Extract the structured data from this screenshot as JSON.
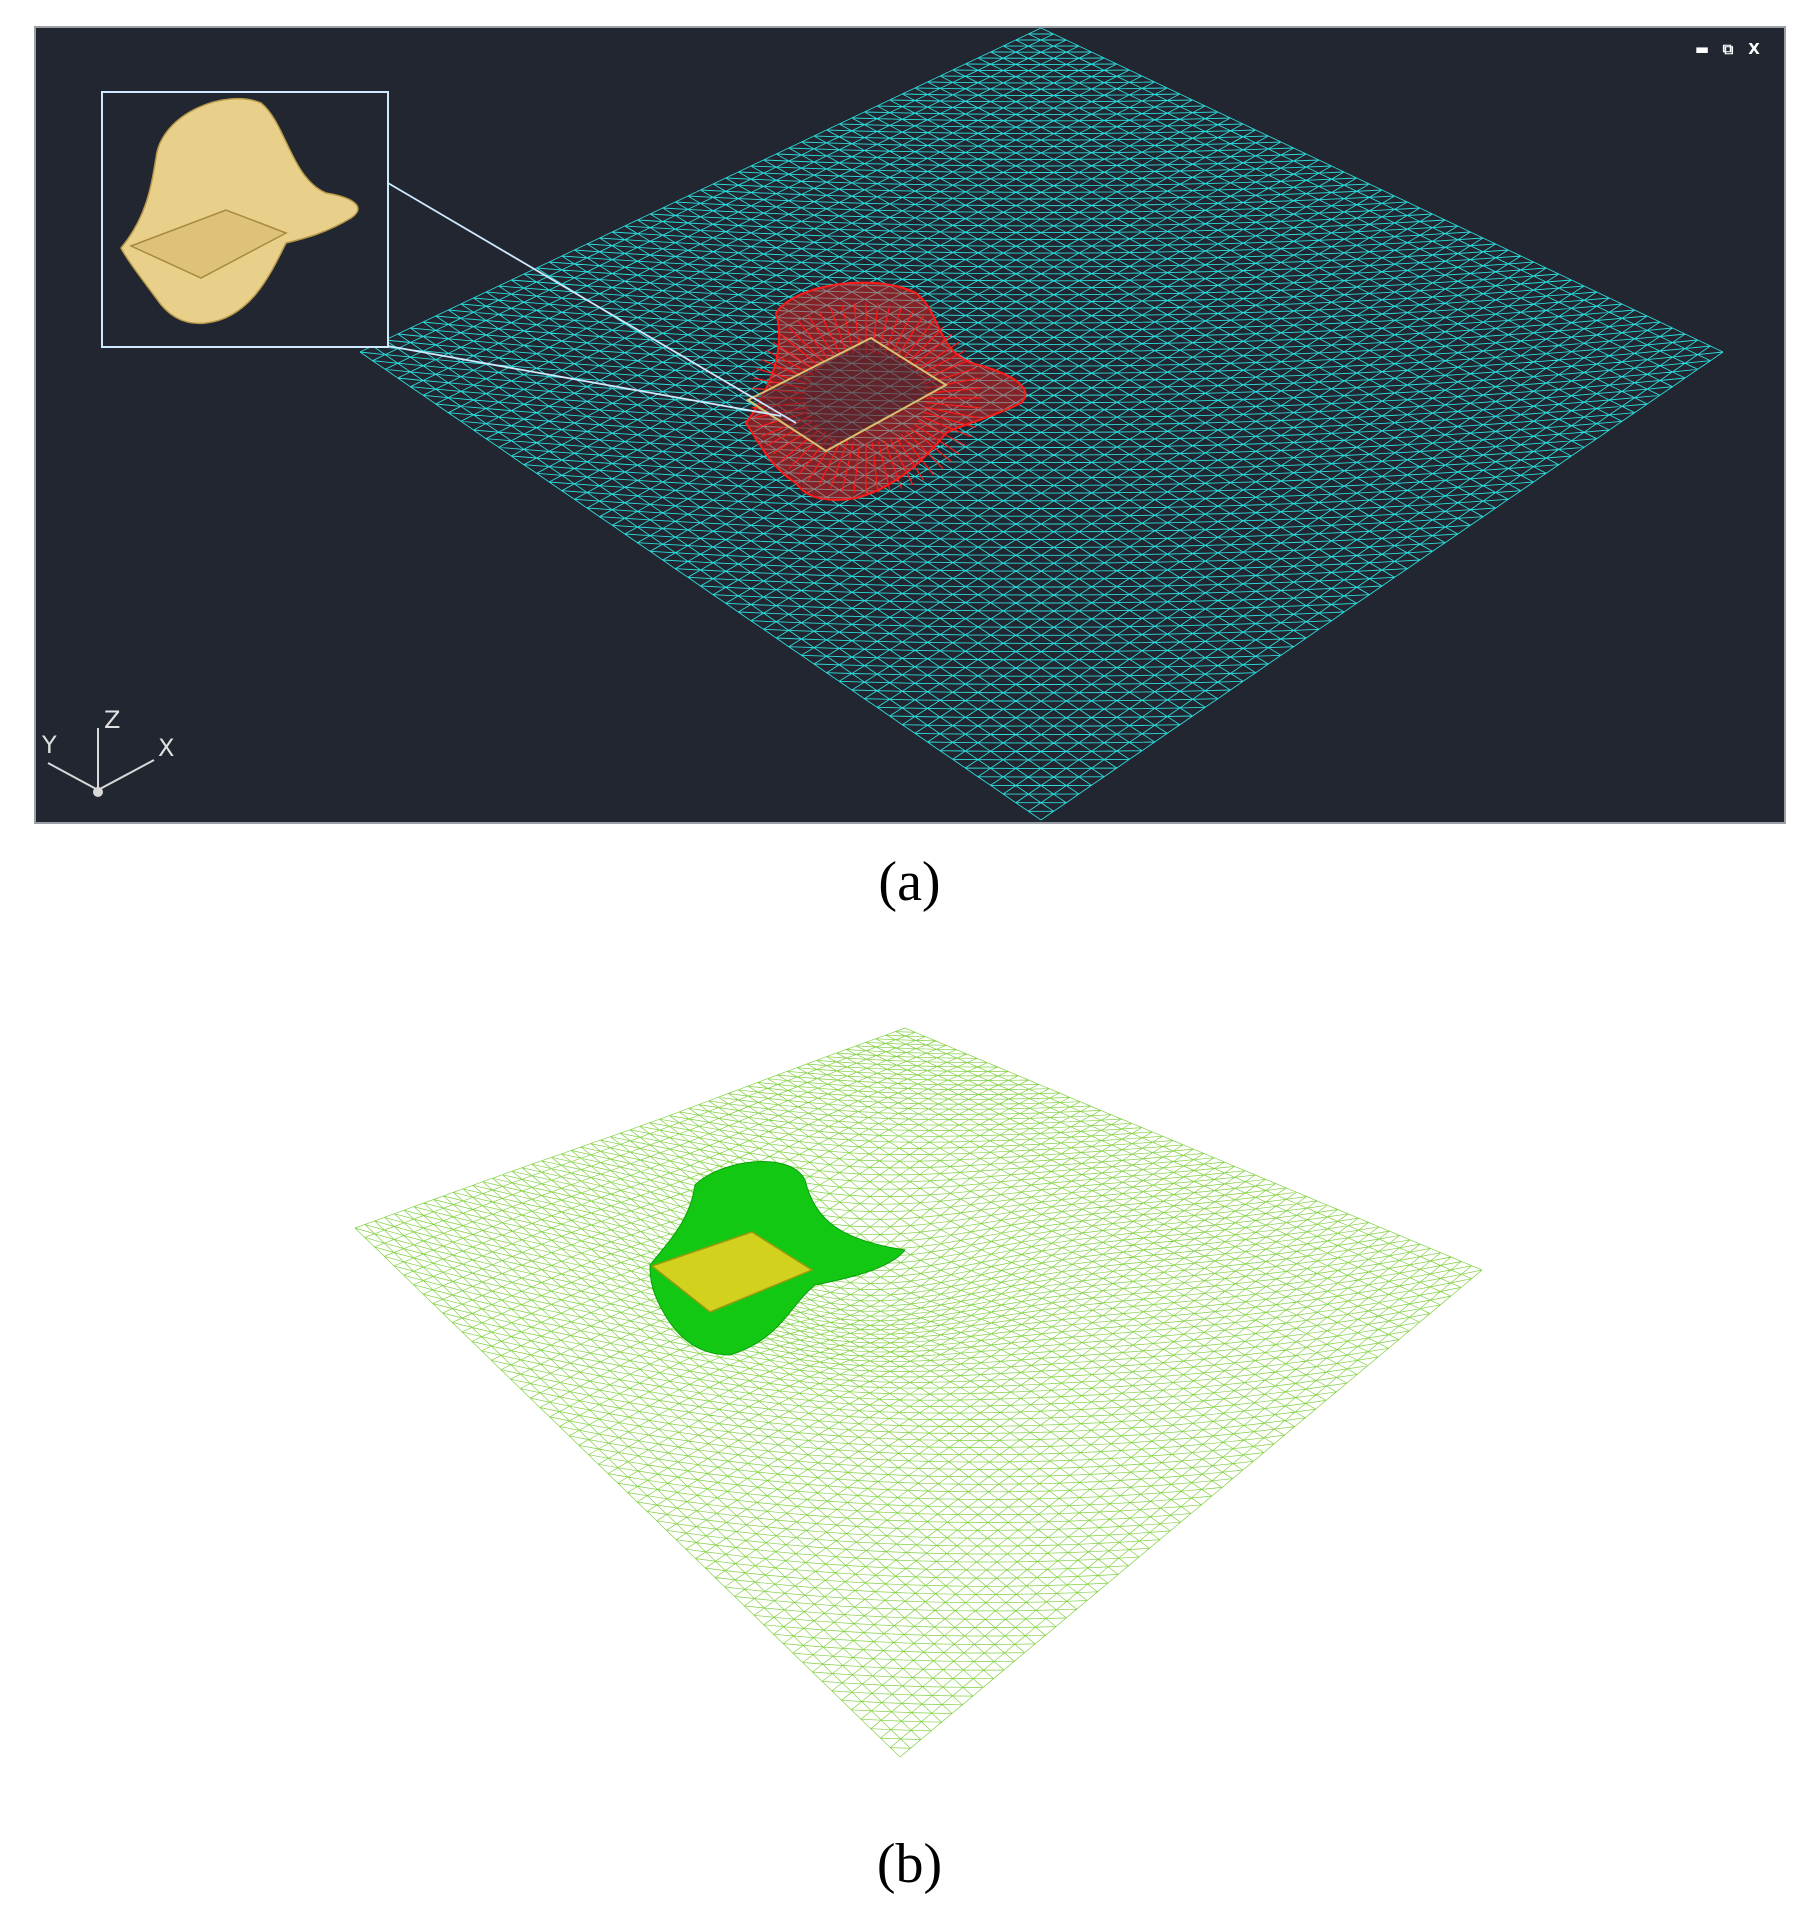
{
  "figure": {
    "panel_a": {
      "caption": "(a)",
      "window_controls": {
        "minimize": "▬",
        "restore": "⧉",
        "close": "X"
      },
      "axes": {
        "x": "X",
        "y": "Y",
        "z": "Z"
      },
      "colors": {
        "background": "#212630",
        "mesh": "#2ee6e6",
        "hole_mesh": "#ff1a1a",
        "inset_solid": "#e8d08a",
        "inset_border": "#cfe9ff"
      },
      "icons": [
        "minimize-icon",
        "restore-icon",
        "close-icon",
        "ucs-axis-icon"
      ]
    },
    "panel_b": {
      "caption": "(b)",
      "colors": {
        "mesh": "#7ccf3a",
        "hole_wall": "#12c812",
        "hole_top": "#d2d21e"
      }
    }
  }
}
